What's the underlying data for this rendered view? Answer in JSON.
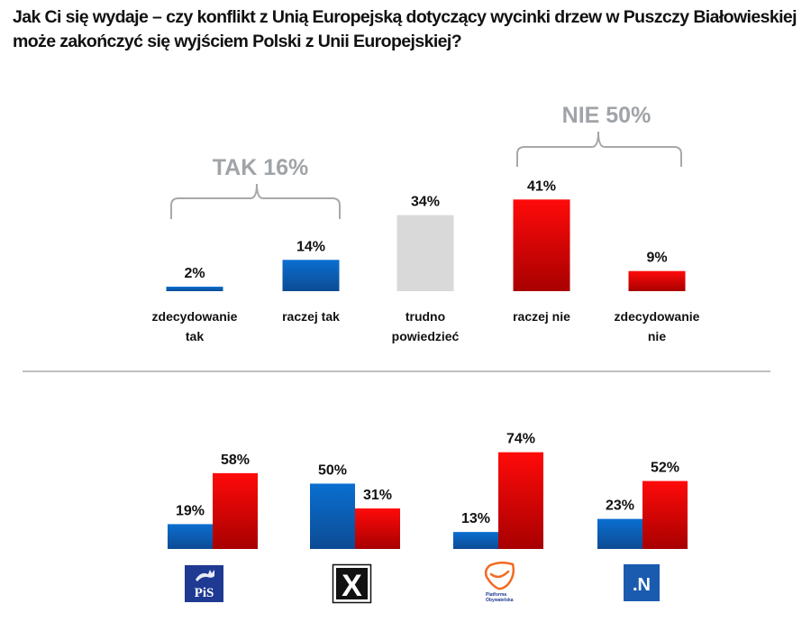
{
  "chart_data": [
    {
      "type": "bar",
      "title": "Jak Ci się wydaje – czy konflikt z Unią Europejską dotyczący wycinki drzew w Puszczy Białowieskiej może zakończyć się wyjściem Polski z Unii Europejskiej?",
      "xlabel": "",
      "ylabel": "",
      "ylim": [
        0,
        50
      ],
      "grid": false,
      "legend": "none",
      "categories": [
        [
          "zdecydowanie",
          "tak"
        ],
        [
          "raczej tak"
        ],
        [
          "trudno",
          "powiedzieć"
        ],
        [
          "raczej nie"
        ],
        [
          "zdecydowanie",
          "nie"
        ]
      ],
      "values": [
        2,
        14,
        34,
        41,
        9
      ],
      "value_labels": [
        "2%",
        "14%",
        "34%",
        "41%",
        "9%"
      ],
      "bar_colors": [
        "blue",
        "blue",
        "gray",
        "red",
        "red"
      ],
      "groups": [
        {
          "label": "TAK 16%",
          "value": 16,
          "covers": [
            0,
            1
          ]
        },
        {
          "label": "NIE 50%",
          "value": 50,
          "covers": [
            3,
            4
          ]
        }
      ]
    },
    {
      "type": "bar",
      "title": "",
      "xlabel": "",
      "ylabel": "",
      "ylim": [
        0,
        80
      ],
      "grid": false,
      "legend": "none",
      "categories": [
        "PiS",
        "Kukiz'15",
        "Platforma Obywatelska",
        "Nowoczesna"
      ],
      "series": [
        {
          "name": "TAK",
          "color": "blue",
          "values": [
            19,
            50,
            13,
            23
          ],
          "labels": [
            "19%",
            "50%",
            "13%",
            "23%"
          ]
        },
        {
          "name": "NIE",
          "color": "red",
          "values": [
            58,
            31,
            74,
            52
          ],
          "labels": [
            "58%",
            "31%",
            "74%",
            "52%"
          ]
        }
      ]
    }
  ],
  "colors": {
    "blue_top": "#0a6fd0",
    "blue_bottom": "#0d4b94",
    "red_top": "#ff0a0a",
    "red_bottom": "#a80000",
    "gray": "#d9d9d9",
    "divider": "#c0c0c0",
    "group_label": "#a0a4a8"
  },
  "logos": {
    "pis": "PiS",
    "pis_icon": "eagle-crown-icon",
    "kukiz": "X",
    "po_line1": "Platforma",
    "po_line2": "Obywatelska",
    "nowoczesna": ".N"
  }
}
